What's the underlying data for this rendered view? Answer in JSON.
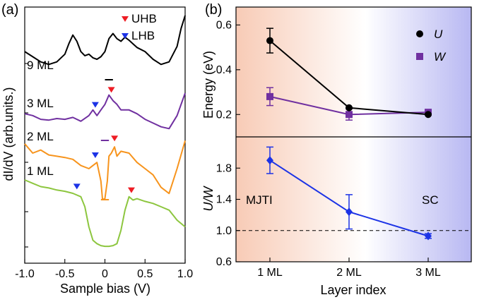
{
  "chart_data": [
    {
      "panel": "(a)",
      "type": "line",
      "title": "",
      "xlabel": "Sample bias (V)",
      "ylabel": "dI/dV (arb.units.)",
      "xlim": [
        -1.0,
        1.0
      ],
      "xticks": [
        "-1.0",
        "-0.5",
        "0",
        "0.5",
        "1.0"
      ],
      "xtick_values": [
        -1.0,
        -0.5,
        0,
        0.5,
        1.0
      ],
      "yticks_shown": false,
      "legend": [
        {
          "label": "UHB",
          "marker": "down-triangle",
          "color": "#ee1c24"
        },
        {
          "label": "LHB",
          "marker": "down-triangle",
          "color": "#1c33e6"
        }
      ],
      "series": [
        {
          "name": "9 ML",
          "color": "#000000",
          "x": [
            -1.0,
            -0.9,
            -0.8,
            -0.7,
            -0.6,
            -0.5,
            -0.45,
            -0.4,
            -0.35,
            -0.3,
            -0.25,
            -0.2,
            -0.15,
            -0.1,
            -0.05,
            0.0,
            0.05,
            0.1,
            0.15,
            0.2,
            0.25,
            0.3,
            0.35,
            0.4,
            0.5,
            0.6,
            0.7,
            0.8,
            0.9,
            0.95,
            1.0
          ],
          "y": [
            0.3,
            0.2,
            0.1,
            0.05,
            0.1,
            0.25,
            0.45,
            0.62,
            0.5,
            0.3,
            0.22,
            0.25,
            0.18,
            0.15,
            0.2,
            0.3,
            0.55,
            0.65,
            0.55,
            0.5,
            0.58,
            0.52,
            0.45,
            0.38,
            0.3,
            0.15,
            0.05,
            0.1,
            0.4,
            0.75,
            1.0
          ],
          "gap_bar_x": [
            0.0,
            0.1
          ]
        },
        {
          "name": "3 ML",
          "color": "#7030a0",
          "x": [
            -1.0,
            -0.9,
            -0.8,
            -0.7,
            -0.6,
            -0.5,
            -0.4,
            -0.3,
            -0.2,
            -0.15,
            -0.1,
            -0.05,
            0.0,
            0.05,
            0.1,
            0.15,
            0.2,
            0.3,
            0.4,
            0.5,
            0.6,
            0.7,
            0.8,
            0.9,
            1.0
          ],
          "y": [
            0.45,
            0.4,
            0.3,
            0.28,
            0.32,
            0.3,
            0.35,
            0.25,
            0.4,
            0.55,
            0.4,
            0.55,
            0.7,
            0.95,
            0.8,
            0.7,
            0.55,
            0.55,
            0.45,
            0.3,
            0.2,
            0.1,
            0.05,
            0.4,
            1.0
          ],
          "uhb_x": 0.08,
          "lhb_x": -0.12,
          "gap_bar_x": [
            -0.05,
            0.05
          ]
        },
        {
          "name": "2 ML",
          "color": "#f7941d",
          "x": [
            -1.0,
            -0.9,
            -0.8,
            -0.7,
            -0.6,
            -0.5,
            -0.4,
            -0.3,
            -0.2,
            -0.1,
            -0.05,
            -0.03,
            0.0,
            0.03,
            0.05,
            0.08,
            0.12,
            0.15,
            0.2,
            0.3,
            0.4,
            0.5,
            0.6,
            0.7,
            0.8,
            0.9,
            1.0
          ],
          "y": [
            0.9,
            0.75,
            0.8,
            0.72,
            0.7,
            0.68,
            0.65,
            0.55,
            0.5,
            0.6,
            0.3,
            0.0,
            0.02,
            0.3,
            0.7,
            0.75,
            0.85,
            0.7,
            0.78,
            0.75,
            0.6,
            0.5,
            0.4,
            0.2,
            0.1,
            0.5,
            0.95
          ],
          "uhb_x": 0.12,
          "lhb_x": -0.12,
          "gap_bar_x": [
            -0.05,
            0.05
          ]
        },
        {
          "name": "1 ML",
          "color": "#8dc63f",
          "x": [
            -1.0,
            -0.9,
            -0.8,
            -0.7,
            -0.6,
            -0.5,
            -0.4,
            -0.3,
            -0.25,
            -0.2,
            -0.15,
            -0.1,
            -0.05,
            0.0,
            0.05,
            0.1,
            0.15,
            0.2,
            0.25,
            0.3,
            0.35,
            0.4,
            0.5,
            0.6,
            0.7,
            0.8,
            0.9,
            1.0
          ],
          "y": [
            1.0,
            0.95,
            0.9,
            0.88,
            0.85,
            0.83,
            0.8,
            0.75,
            0.6,
            0.3,
            0.1,
            0.05,
            0.02,
            0.01,
            0.01,
            0.02,
            0.05,
            0.25,
            0.55,
            0.75,
            0.7,
            0.72,
            0.68,
            0.65,
            0.6,
            0.55,
            0.4,
            0.3
          ],
          "uhb_x": 0.33,
          "lhb_x": -0.35
        }
      ]
    },
    {
      "panel": "(b)",
      "type": "line",
      "subplot": "top",
      "xlabel": "",
      "ylabel": "Energy (eV)",
      "categories": [
        "1 ML",
        "2 ML",
        "3 ML"
      ],
      "ylim": [
        0.1,
        0.68
      ],
      "yticks": [
        "0.2",
        "0.4",
        "0.6"
      ],
      "ytick_values": [
        0.2,
        0.4,
        0.6
      ],
      "series": [
        {
          "name": "U",
          "marker": "circle",
          "color": "#000000",
          "values": [
            0.53,
            0.23,
            0.2
          ],
          "errors": [
            0.055,
            0.0,
            0.0
          ]
        },
        {
          "name": "W",
          "marker": "square",
          "color": "#7030a0",
          "values": [
            0.28,
            0.2,
            0.21
          ],
          "errors": [
            0.04,
            0.025,
            0.0
          ]
        }
      ],
      "background_gradient": [
        "#f8cbb6",
        "#ffffff",
        "#b8b8f2"
      ]
    },
    {
      "panel": "(b)",
      "type": "line",
      "subplot": "bottom",
      "xlabel": "Layer index",
      "ylabel": "U/W",
      "categories": [
        "1 ML",
        "2 ML",
        "3 ML"
      ],
      "ylim": [
        0.6,
        2.2
      ],
      "yticks": [
        "0.6",
        "1.0",
        "1.4",
        "1.8"
      ],
      "ytick_values": [
        0.6,
        1.0,
        1.4,
        1.8
      ],
      "series": [
        {
          "name": "U/W",
          "marker": "diamond",
          "color": "#1c33e6",
          "values": [
            1.9,
            1.24,
            0.93
          ],
          "errors": [
            0.17,
            0.22,
            0.03
          ]
        }
      ],
      "reference_line": {
        "y": 1.0,
        "style": "dashed"
      },
      "annotations": [
        {
          "text": "MJTI",
          "near": "1 ML"
        },
        {
          "text": "SC",
          "near": "3 ML"
        }
      ],
      "background_gradient": [
        "#f8cbb6",
        "#ffffff",
        "#b8b8f2"
      ]
    }
  ]
}
